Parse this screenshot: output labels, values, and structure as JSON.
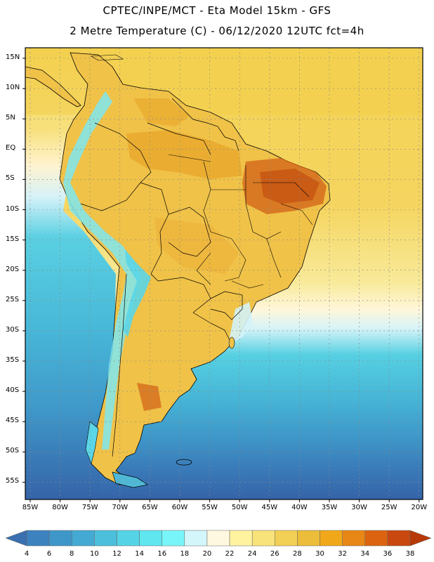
{
  "title_line1": "CPTEC/INPE/MCT  -   Eta Model 15km  -  GFS",
  "title_line2": "2 Metre Temperature (C)  -  06/12/2020 12UTC fct=4h",
  "lat_labels": [
    "15N",
    "10N",
    "5N",
    "EQ",
    "5S",
    "10S",
    "15S",
    "20S",
    "25S",
    "30S",
    "35S",
    "40S",
    "45S",
    "50S",
    "55S"
  ],
  "lon_labels": [
    "85W",
    "80W",
    "75W",
    "70W",
    "65W",
    "60W",
    "55W",
    "50W",
    "45W",
    "40W",
    "35W",
    "30W",
    "25W",
    "20W"
  ],
  "colorbar": {
    "values": [
      "4",
      "6",
      "8",
      "10",
      "12",
      "14",
      "16",
      "18",
      "20",
      "22",
      "24",
      "26",
      "28",
      "30",
      "32",
      "34",
      "36",
      "38"
    ],
    "colors": [
      "#3a6fb0",
      "#3c82bf",
      "#3f96c8",
      "#44a9d3",
      "#4cbfdc",
      "#55d3e6",
      "#5fe6ef",
      "#78f5f8",
      "#d3f6fa",
      "#fff8e0",
      "#fff3a0",
      "#f8e27a",
      "#f2cf55",
      "#ecbd3a",
      "#f0a81a",
      "#e88716",
      "#dc6410",
      "#c84810",
      "#b83808"
    ]
  }
}
